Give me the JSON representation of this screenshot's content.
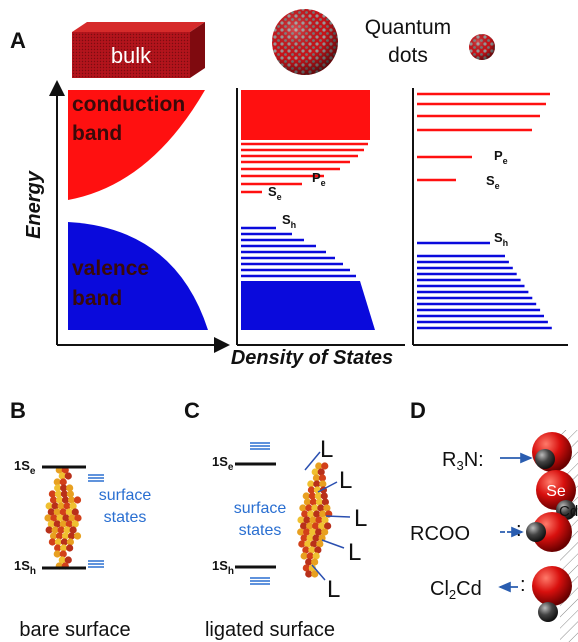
{
  "panel_a": {
    "label": "A",
    "bulk": "bulk",
    "quantum": "Quantum",
    "dots": "dots",
    "conduction": [
      "conduction",
      "band"
    ],
    "valence": [
      "valence",
      "band"
    ],
    "y_axis": "Energy",
    "x_axis": "Density of States",
    "middle": {
      "pe": {
        "main": "P",
        "sub": "e"
      },
      "se": {
        "main": "S",
        "sub": "e"
      },
      "sh": {
        "main": "S",
        "sub": "h"
      }
    },
    "right": {
      "pe": {
        "main": "P",
        "sub": "e"
      },
      "se": {
        "main": "S",
        "sub": "e"
      },
      "sh": {
        "main": "S",
        "sub": "h"
      }
    }
  },
  "panel_b": {
    "label": "B",
    "top_level": {
      "main": "1S",
      "sub": "e"
    },
    "bottom_level": {
      "main": "1S",
      "sub": "h"
    },
    "surface_states": [
      "surface",
      "states"
    ],
    "caption": "bare surface"
  },
  "panel_c": {
    "label": "C",
    "top_level": {
      "main": "1S",
      "sub": "e"
    },
    "bottom_level": {
      "main": "1S",
      "sub": "h"
    },
    "surface_states": [
      "surface",
      "states"
    ],
    "ligands": [
      "L",
      "L",
      "L",
      "L",
      "L"
    ],
    "caption": "ligated surface"
  },
  "panel_d": {
    "label": "D",
    "r3n": {
      "main": "R",
      "sub": "3",
      "rest": "N:"
    },
    "rcoo": {
      "main": "RCOO",
      "colon": ":"
    },
    "cl2cd": {
      "main": "Cl",
      "sub": "2",
      "rest": "Cd",
      "colon": ":"
    },
    "se_atom": "Se",
    "cd_atom": "Cd"
  }
}
